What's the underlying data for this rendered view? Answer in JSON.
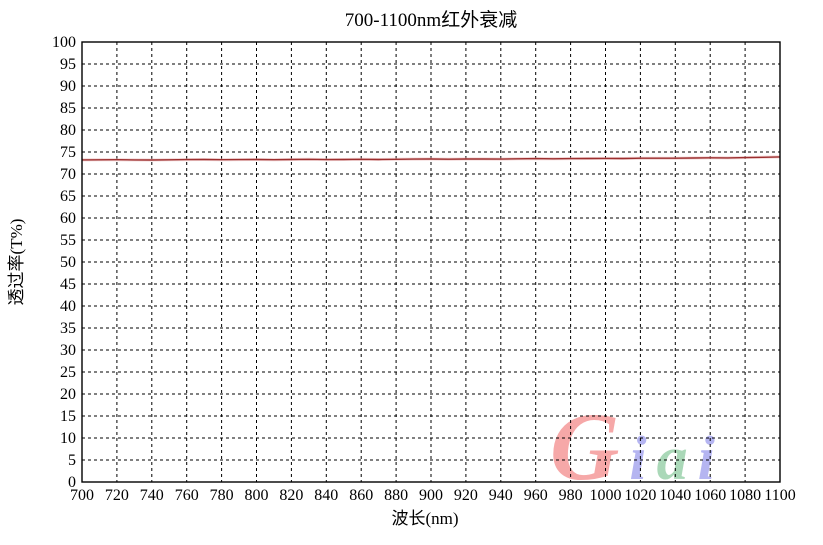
{
  "chart_data": {
    "type": "line",
    "title": "700-1100nm红外衰减",
    "xlabel": "波长(nm)",
    "ylabel": "透过率(T%)",
    "xlim": [
      700,
      1100
    ],
    "ylim": [
      0,
      100
    ],
    "x_ticks": [
      700,
      720,
      740,
      760,
      780,
      800,
      820,
      840,
      860,
      880,
      900,
      920,
      940,
      960,
      980,
      1000,
      1020,
      1040,
      1060,
      1080,
      1100
    ],
    "y_ticks": [
      0,
      5,
      10,
      15,
      20,
      25,
      30,
      35,
      40,
      45,
      50,
      55,
      60,
      65,
      70,
      75,
      80,
      85,
      90,
      95,
      100
    ],
    "grid": "dashed-both-axes",
    "legend": "none",
    "series": [
      {
        "name": "透过率",
        "color": "#9c2f2f",
        "halo_color": "#e7b0b0",
        "x": [
          700,
          710,
          720,
          730,
          740,
          750,
          760,
          770,
          780,
          790,
          800,
          810,
          820,
          830,
          840,
          850,
          860,
          870,
          880,
          890,
          900,
          910,
          920,
          930,
          940,
          950,
          960,
          970,
          980,
          990,
          1000,
          1010,
          1020,
          1030,
          1040,
          1050,
          1060,
          1070,
          1080,
          1090,
          1100
        ],
        "y": [
          73.2,
          73.22,
          73.25,
          73.2,
          73.18,
          73.22,
          73.28,
          73.3,
          73.25,
          73.27,
          73.3,
          73.26,
          73.3,
          73.33,
          73.28,
          73.3,
          73.35,
          73.3,
          73.33,
          73.38,
          73.4,
          73.36,
          73.4,
          73.42,
          73.38,
          73.45,
          73.5,
          73.46,
          73.5,
          73.52,
          73.55,
          73.52,
          73.58,
          73.6,
          73.58,
          73.64,
          73.68,
          73.65,
          73.72,
          73.8,
          73.88
        ]
      }
    ]
  },
  "watermark": {
    "text": "Giai",
    "letters": [
      {
        "char": "G",
        "color": "#f59a9a"
      },
      {
        "char": "i",
        "color": "#a9a9ef"
      },
      {
        "char": "a",
        "color": "#9cd2ac"
      },
      {
        "char": "i",
        "color": "#a9a9ef"
      }
    ]
  },
  "colors": {
    "background": "#ffffff",
    "axis_border": "#000000",
    "gridline": "#000000"
  }
}
